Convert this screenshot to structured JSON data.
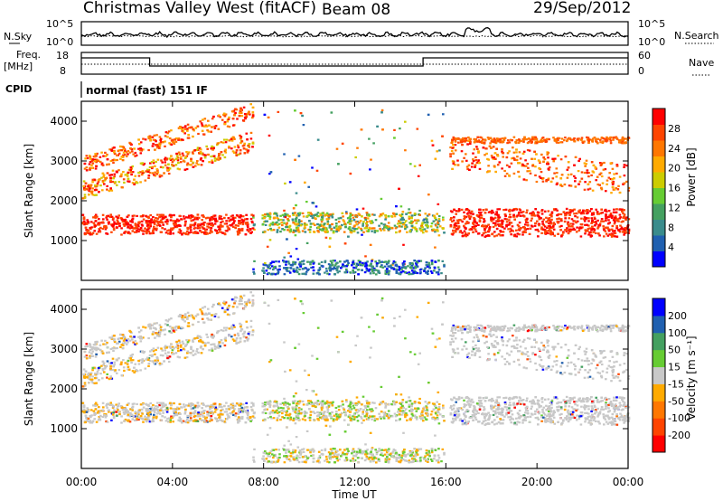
{
  "header": {
    "station": "Christmas Valley West (fitACF)",
    "beam": "Beam 08",
    "date": "29/Sep/2012"
  },
  "strip_labels": {
    "nsky": "N.Sky",
    "nsearch": "N.Search",
    "freq": "Freq.",
    "freq_unit": "[MHz]",
    "nave": "Nave",
    "cpid": "CPID",
    "cpid_value": "normal (fast) 151 IF"
  },
  "strip_ticks": {
    "noise_left": [
      "10^5",
      "10^0"
    ],
    "noise_right": [
      "10^5",
      "10^0"
    ],
    "freq_left": [
      "18",
      "8"
    ],
    "nave_right": [
      "60",
      "0"
    ]
  },
  "colors": {
    "scale": [
      "#0000ff",
      "#2060b0",
      "#3a8c8c",
      "#44a060",
      "#66cc33",
      "#cccc00",
      "#ffaa00",
      "#ff7700",
      "#ff4400",
      "#ff0000"
    ],
    "gray": "#c8c8c8",
    "velocity_scale": [
      "#ff0000",
      "#ff4400",
      "#ff7700",
      "#ffaa00",
      "#c8c8c8",
      "#66cc33",
      "#44a060",
      "#2060b0",
      "#0000ff"
    ]
  },
  "chart_data": [
    {
      "type": "heatmap",
      "name_panel": "power",
      "ylabel": "Slant Range [km]",
      "ylim": [
        0,
        4500
      ],
      "yticks": [
        "1000",
        "2000",
        "3000",
        "4000"
      ],
      "xlim": [
        0,
        24
      ],
      "colorbar_label": "Power [dB]",
      "colorbar_ticks": [
        "4",
        "8",
        "12",
        "16",
        "20",
        "24",
        "28"
      ],
      "colorbar_range": [
        0,
        30
      ]
    },
    {
      "type": "heatmap",
      "name_panel": "velocity",
      "ylabel": "Slant Range [km]",
      "ylim": [
        0,
        4500
      ],
      "yticks": [
        "1000",
        "2000",
        "3000",
        "4000"
      ],
      "xlim": [
        0,
        24
      ],
      "xlabel": "Time UT",
      "xticks": [
        "00:00",
        "04:00",
        "08:00",
        "12:00",
        "16:00",
        "20:00",
        "00:00"
      ],
      "colorbar_label": "Velocity [m s⁻¹]",
      "colorbar_ticks": [
        "200",
        "100",
        "50",
        "15",
        "-15",
        "-50",
        "-100",
        "-200"
      ]
    }
  ]
}
